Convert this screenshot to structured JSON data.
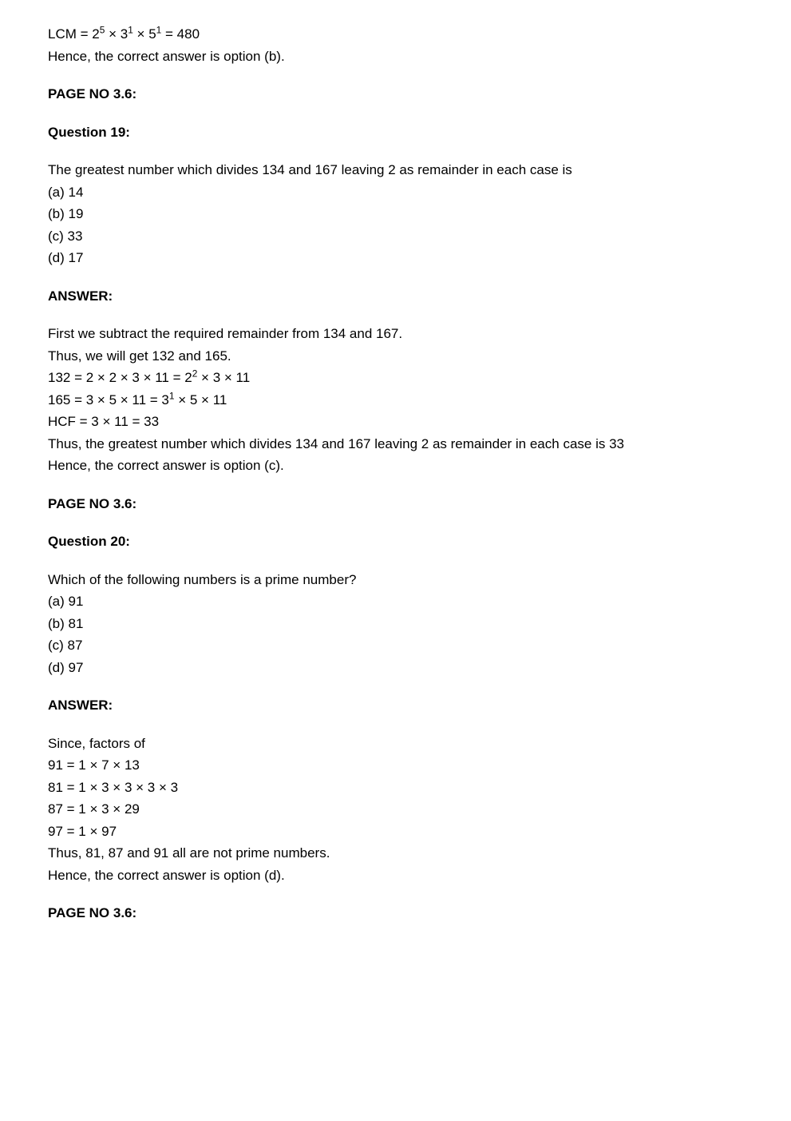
{
  "line1_part1": "LCM = 2",
  "line1_sup1": "5",
  "line1_part2": " × 3",
  "line1_sup2": "1",
  "line1_part3": "  × 5",
  "line1_sup3": "1",
  "line1_part4": " = 480",
  "line2": "Hence, the correct answer is option (b).",
  "pageNo36_1": "PAGE NO 3.6:",
  "q19_title": "Question 19:",
  "q19_text": "The greatest number which divides 134 and 167 leaving 2 as remainder in each case is",
  "q19_a": "(a) 14",
  "q19_b": "(b) 19",
  "q19_c": "(c) 33",
  "q19_d": "(d) 17",
  "answer_label_1": "ANSWER:",
  "a19_l1": "First we subtract the required remainder from 134 and 167.",
  "a19_l2": "Thus, we will get 132 and 165.",
  "a19_l3_part1": "132 = 2 × 2 × 3 × 11 = 2",
  "a19_l3_sup": "2",
  "a19_l3_part2": " × 3 × 11",
  "a19_l4_part1": "165 = 3 × 5 × 11 = 3",
  "a19_l4_sup": "1",
  "a19_l4_part2": " × 5 × 11",
  "a19_l5": "HCF = 3 × 11 = 33",
  "a19_l6": "Thus, the greatest number which divides 134 and 167 leaving 2 as remainder in each case is 33",
  "a19_l7": "Hence, the correct answer is option (c).",
  "pageNo36_2": "PAGE NO 3.6:",
  "q20_title": "Question 20:",
  "q20_text": "Which of the following numbers is a prime number?",
  "q20_a": "(a) 91",
  "q20_b": "(b) 81",
  "q20_c": "(c) 87",
  "q20_d": "(d) 97",
  "answer_label_2": "ANSWER:",
  "a20_l1": "Since, factors of",
  "a20_l2": "91 = 1 × 7 × 13",
  "a20_l3": "81 = 1 × 3 × 3 × 3 × 3",
  "a20_l4": "87 = 1 × 3 × 29",
  "a20_l5": "97 = 1 × 97",
  "a20_l6": "Thus, 81, 87 and 91 all are not prime numbers.",
  "a20_l7": "Hence, the correct answer is option (d).",
  "pageNo36_3": "PAGE NO 3.6:"
}
